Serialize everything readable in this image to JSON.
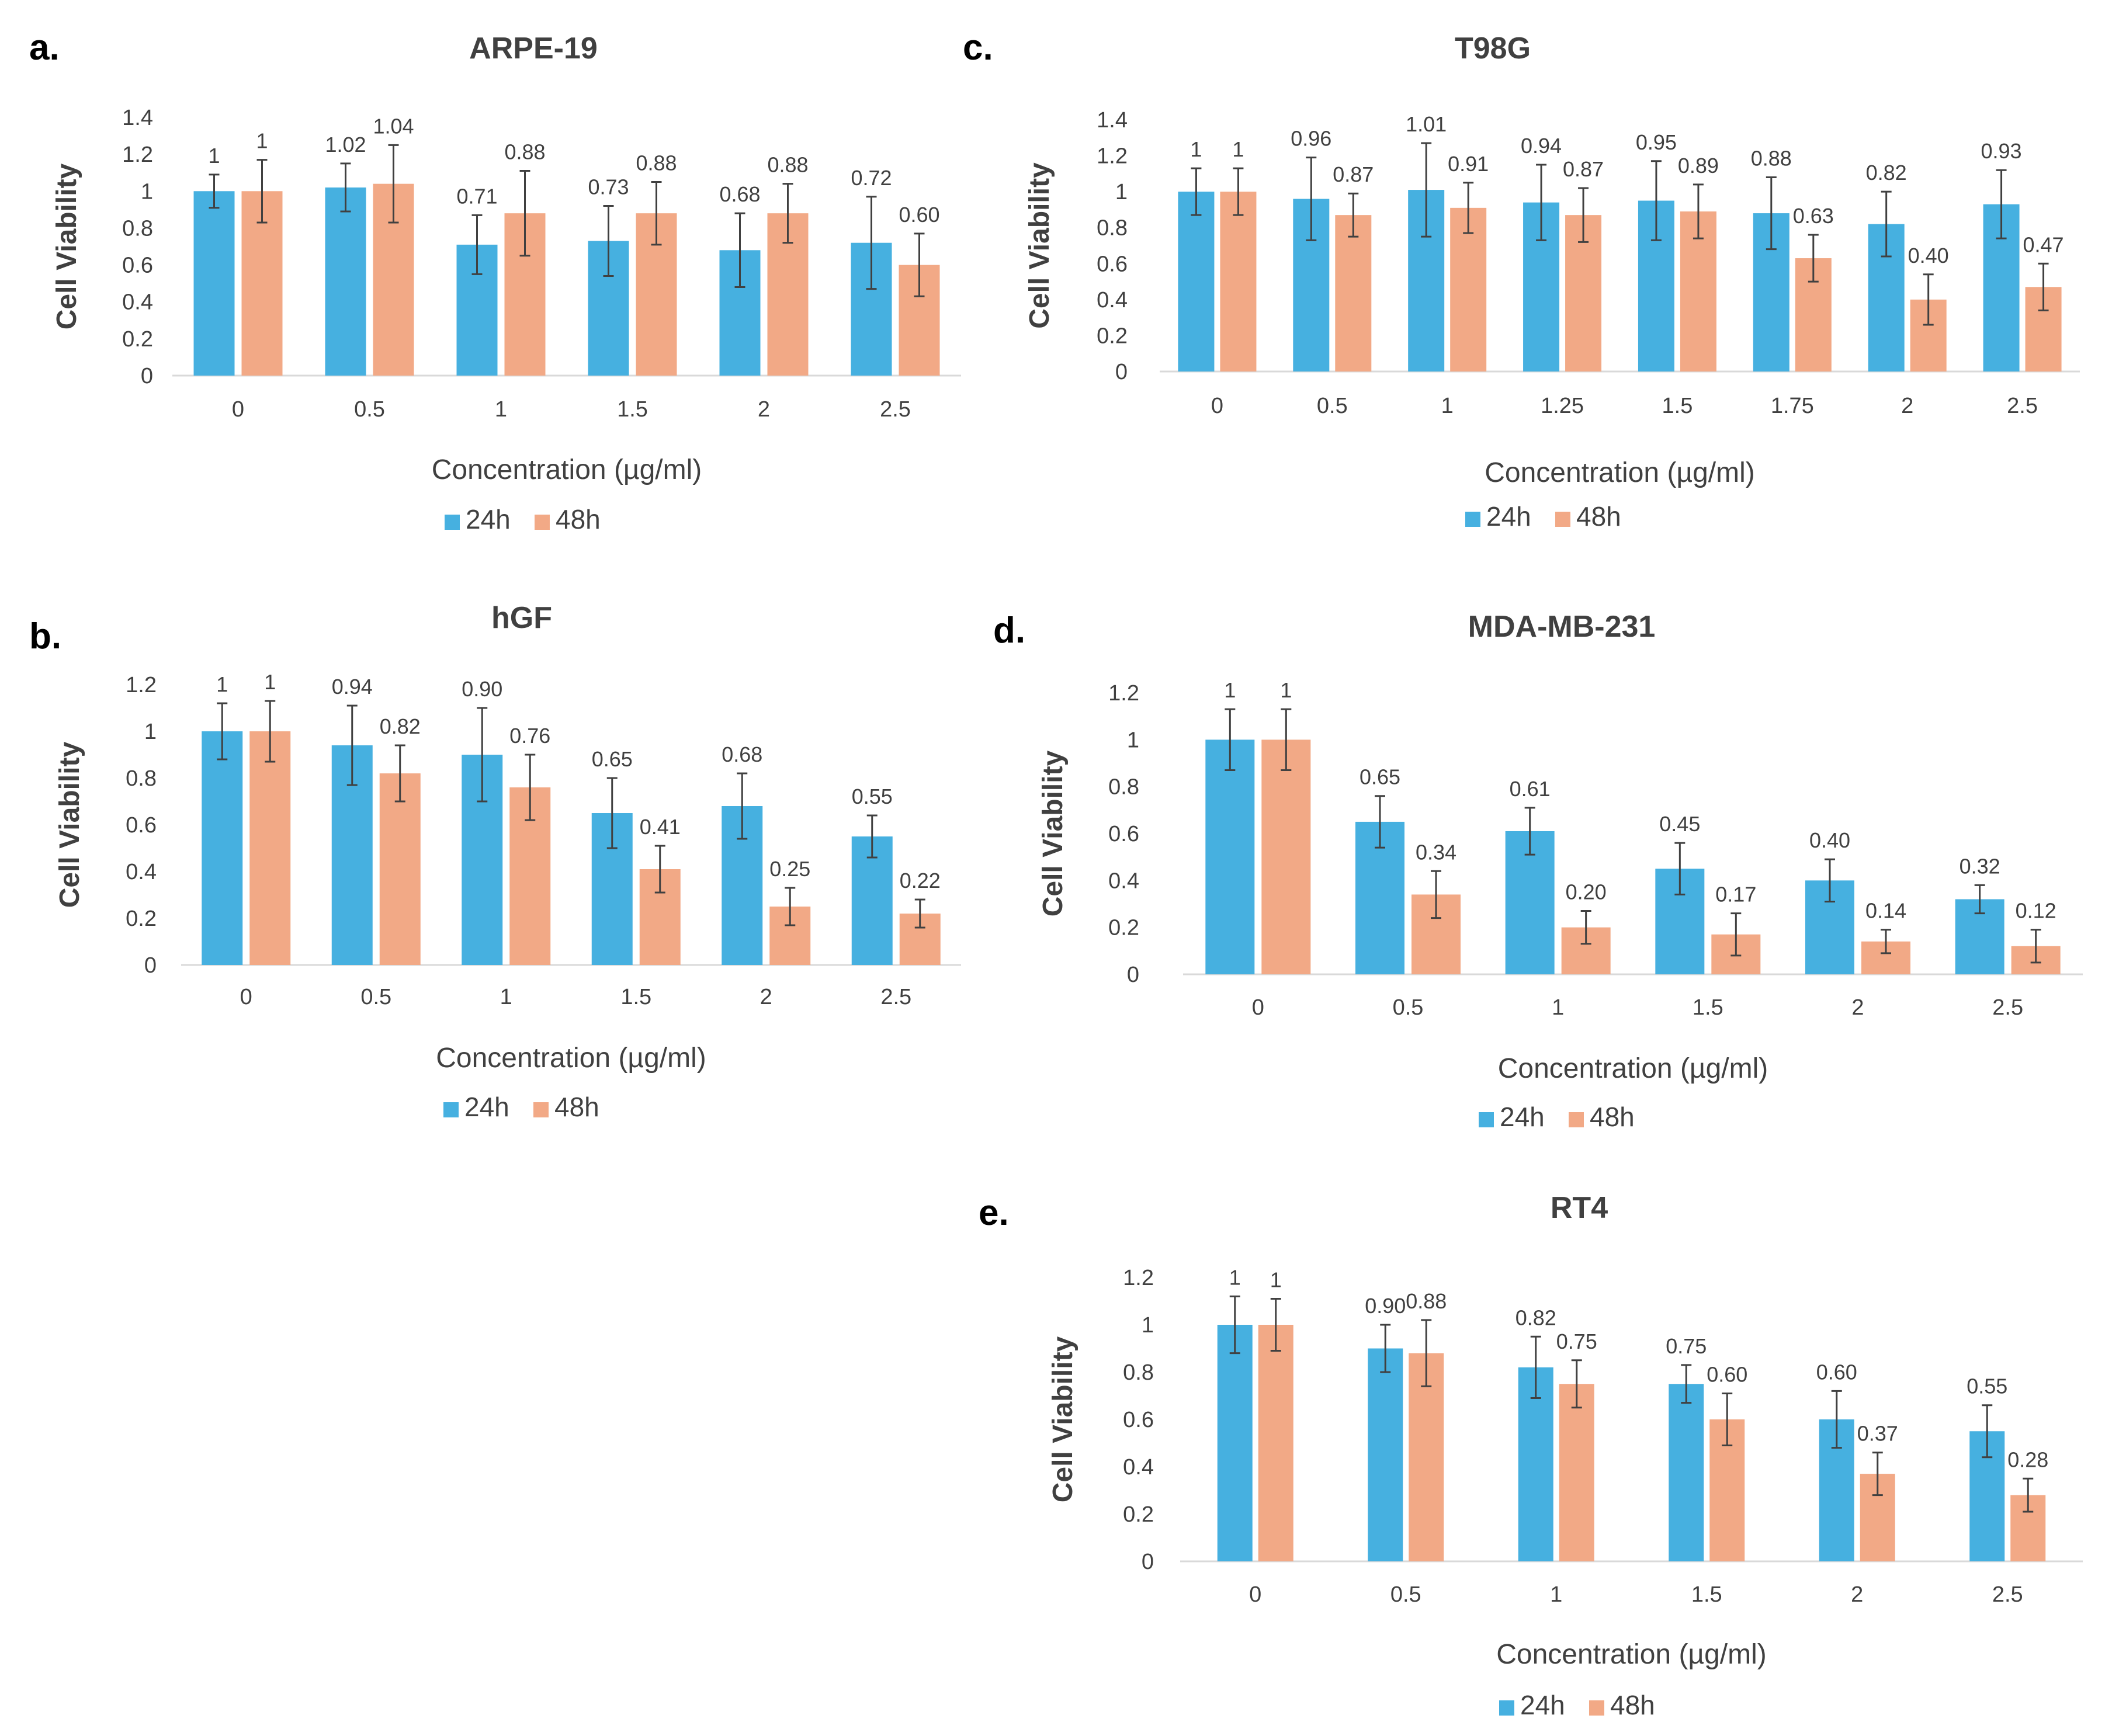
{
  "colors": {
    "series_24h": "#46b0e0",
    "series_48h": "#f2a986",
    "axis": "#d9d9d9",
    "text": "#404040",
    "error_bar": "#404040"
  },
  "chart_data": [
    {
      "panel": "a.",
      "type": "bar",
      "title": "ARPE-19",
      "xlabel": "Concentration (µg/ml)",
      "ylabel": "Cell Viability",
      "categories": [
        "0",
        "0.5",
        "1",
        "1.5",
        "2",
        "2.5"
      ],
      "ylim": [
        0,
        1.4
      ],
      "yticks": [
        "0",
        "0.2",
        "0.4",
        "0.6",
        "0.8",
        "1",
        "1.2",
        "1.4"
      ],
      "legend": "bottom",
      "series": [
        {
          "name": "24h",
          "values": [
            1,
            1.02,
            0.71,
            0.73,
            0.68,
            0.72
          ],
          "labels": [
            "1",
            "1.02",
            "0.71",
            "0.73",
            "0.68",
            "0.72"
          ],
          "errors": [
            0.09,
            0.13,
            0.16,
            0.19,
            0.2,
            0.25
          ]
        },
        {
          "name": "48h",
          "values": [
            1,
            1.04,
            0.88,
            0.88,
            0.88,
            0.6
          ],
          "labels": [
            "1",
            "1.04",
            "0.88",
            "0.88",
            "0.88",
            "0.60"
          ],
          "errors": [
            0.17,
            0.21,
            0.23,
            0.17,
            0.16,
            0.17
          ]
        }
      ]
    },
    {
      "panel": "b.",
      "type": "bar",
      "title": "hGF",
      "xlabel": "Concentration (µg/ml)",
      "ylabel": "Cell Viability",
      "categories": [
        "0",
        "0.5",
        "1",
        "1.5",
        "2",
        "2.5"
      ],
      "ylim": [
        0,
        1.2
      ],
      "yticks": [
        "0",
        "0.2",
        "0.4",
        "0.6",
        "0.8",
        "1",
        "1.2"
      ],
      "legend": "bottom",
      "series": [
        {
          "name": "24h",
          "values": [
            1,
            0.94,
            0.9,
            0.65,
            0.68,
            0.55
          ],
          "labels": [
            "1",
            "0.94",
            "0.90",
            "0.65",
            "0.68",
            "0.55"
          ],
          "errors": [
            0.12,
            0.17,
            0.2,
            0.15,
            0.14,
            0.09
          ]
        },
        {
          "name": "48h",
          "values": [
            1,
            0.82,
            0.76,
            0.41,
            0.25,
            0.22
          ],
          "labels": [
            "1",
            "0.82",
            "0.76",
            "0.41",
            "0.25",
            "0.22"
          ],
          "errors": [
            0.13,
            0.12,
            0.14,
            0.1,
            0.08,
            0.06
          ]
        }
      ]
    },
    {
      "panel": "c.",
      "type": "bar",
      "title": "T98G",
      "xlabel": "Concentration (µg/ml)",
      "ylabel": "Cell Viability",
      "categories": [
        "0",
        "0.5",
        "1",
        "1.25",
        "1.5",
        "1.75",
        "2",
        "2.5"
      ],
      "ylim": [
        0,
        1.4
      ],
      "yticks": [
        "0",
        "0.2",
        "0.4",
        "0.6",
        "0.8",
        "1",
        "1.2",
        "1.4"
      ],
      "legend": "bottom",
      "series": [
        {
          "name": "24h",
          "values": [
            1,
            0.96,
            1.01,
            0.94,
            0.95,
            0.88,
            0.82,
            0.93
          ],
          "labels": [
            "1",
            "0.96",
            "1.01",
            "0.94",
            "0.95",
            "0.88",
            "0.82",
            "0.93"
          ],
          "errors": [
            0.13,
            0.23,
            0.26,
            0.21,
            0.22,
            0.2,
            0.18,
            0.19
          ]
        },
        {
          "name": "48h",
          "values": [
            1,
            0.87,
            0.91,
            0.87,
            0.89,
            0.63,
            0.4,
            0.47
          ],
          "labels": [
            "1",
            "0.87",
            "0.91",
            "0.87",
            "0.89",
            "0.63",
            "0.40",
            "0.47"
          ],
          "errors": [
            0.13,
            0.12,
            0.14,
            0.15,
            0.15,
            0.13,
            0.14,
            0.13
          ]
        }
      ]
    },
    {
      "panel": "d.",
      "type": "bar",
      "title": "MDA-MB-231",
      "xlabel": "Concentration (µg/ml)",
      "ylabel": "Cell Viability",
      "categories": [
        "0",
        "0.5",
        "1",
        "1.5",
        "2",
        "2.5"
      ],
      "ylim": [
        0,
        1.2
      ],
      "yticks": [
        "0",
        "0.2",
        "0.4",
        "0.6",
        "0.8",
        "1",
        "1.2"
      ],
      "legend": "bottom",
      "series": [
        {
          "name": "24h",
          "values": [
            1,
            0.65,
            0.61,
            0.45,
            0.4,
            0.32
          ],
          "labels": [
            "1",
            "0.65",
            "0.61",
            "0.45",
            "0.40",
            "0.32"
          ],
          "errors": [
            0.13,
            0.11,
            0.1,
            0.11,
            0.09,
            0.06
          ]
        },
        {
          "name": "48h",
          "values": [
            1,
            0.34,
            0.2,
            0.17,
            0.14,
            0.12
          ],
          "labels": [
            "1",
            "0.34",
            "0.20",
            "0.17",
            "0.14",
            "0.12"
          ],
          "errors": [
            0.13,
            0.1,
            0.07,
            0.09,
            0.05,
            0.07
          ]
        }
      ]
    },
    {
      "panel": "e.",
      "type": "bar",
      "title": "RT4",
      "xlabel": "Concentration (µg/ml)",
      "ylabel": "Cell Viability",
      "categories": [
        "0",
        "0.5",
        "1",
        "1.5",
        "2",
        "2.5"
      ],
      "ylim": [
        0,
        1.2
      ],
      "yticks": [
        "0",
        "0.2",
        "0.4",
        "0.6",
        "0.8",
        "1",
        "1.2"
      ],
      "legend": "bottom",
      "series": [
        {
          "name": "24h",
          "values": [
            1,
            0.9,
            0.82,
            0.75,
            0.6,
            0.55
          ],
          "labels": [
            "1",
            "0.90",
            "0.82",
            "0.75",
            "0.60",
            "0.55"
          ],
          "errors": [
            0.12,
            0.1,
            0.13,
            0.08,
            0.12,
            0.11
          ]
        },
        {
          "name": "48h",
          "values": [
            1,
            0.88,
            0.75,
            0.6,
            0.37,
            0.28
          ],
          "labels": [
            "1",
            "0.88",
            "0.75",
            "0.60",
            "0.37",
            "0.28"
          ],
          "errors": [
            0.11,
            0.14,
            0.1,
            0.11,
            0.09,
            0.07
          ]
        }
      ]
    }
  ]
}
